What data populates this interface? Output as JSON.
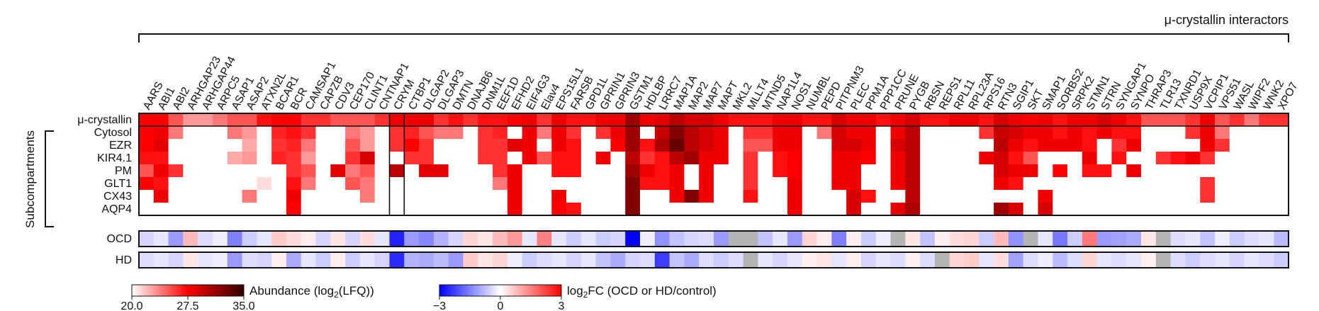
{
  "chart_data": {
    "type": "heatmap",
    "title": "μ-crystallin interactors",
    "columns": [
      "AARS",
      "ABI1",
      "ABI2",
      "ARHGAP23",
      "ARHGAP44",
      "ARPC5",
      "ASAP1",
      "ASAP2",
      "ATXN2L",
      "BCAR1",
      "BCR",
      "CAMSAP1",
      "CAPZB",
      "CDV3",
      "CEP170",
      "CLINT1",
      "CNTNAP1",
      "CRYM",
      "CTBP1",
      "DLGAP2",
      "DLGAP3",
      "DMTN",
      "DNAJB6",
      "DNM1L",
      "EEF1D",
      "EFHD2",
      "EIF4G3",
      "Elav4",
      "EPS15L1",
      "FARSB",
      "GPD1L",
      "GPRIN1",
      "GPRIN3",
      "GSTM1",
      "HDLBP",
      "LRRC7",
      "MAP1A",
      "MAP2",
      "MAP7",
      "MAPT",
      "MKL2",
      "MLLT4",
      "MTND5",
      "NAP1L4",
      "NOS1",
      "NUMBL",
      "PEPD",
      "PITPNM3",
      "PLEC",
      "PPM1A",
      "PPP1CC",
      "PRUNE",
      "PYGB",
      "RBSN",
      "REPS1",
      "RPL11",
      "RPL23A",
      "RPS16",
      "RTN3",
      "SGIP1",
      "SKT",
      "SMAP1",
      "SORBS2",
      "SRPK2",
      "STMN1",
      "STRN",
      "SYNGAP1",
      "SYNPO",
      "THRAP3",
      "TLR13",
      "TXNRD1",
      "USP9X",
      "VCPIP1",
      "VPS51",
      "WASL",
      "WIPF2",
      "WNK2",
      "XPO7"
    ],
    "abundance_rows": [
      "μ-crystallin",
      "Cytosol",
      "EZR",
      "KIR4.1",
      "PM",
      "GLT1",
      "CX43",
      "AQP4"
    ],
    "subcompartments_label": "Subcompartments",
    "fc_rows": [
      "OCD",
      "HD"
    ],
    "highlight_column": "CRYM",
    "abundance_scale": {
      "label_pre": "Abundance (log",
      "label_sub": "2",
      "label_post": "(LFQ))",
      "min": 20.0,
      "max": 35.0,
      "ticks": [
        "20.0",
        "27.5",
        "35.0"
      ],
      "colors": [
        "#ffffff",
        "#ff0000",
        "#300000"
      ]
    },
    "fc_scale": {
      "label_pre": "log",
      "label_sub": "2",
      "label_post": "FC (OCD or HD/control)",
      "min": -3,
      "max": 3,
      "ticks": [
        "−3",
        "0",
        "3"
      ],
      "colors": [
        "#0000ff",
        "#ffffff",
        "#ff0000"
      ]
    },
    "na_color": "#b4b4b4",
    "abundance": [
      [
        27.5,
        27.5,
        25,
        23,
        23,
        24,
        25,
        25,
        27,
        27.5,
        27.5,
        26,
        26,
        25,
        25,
        25,
        26,
        28,
        28,
        28,
        26,
        27,
        26,
        27,
        27,
        27.5,
        28,
        26,
        28,
        27,
        27,
        28,
        28,
        31,
        28,
        28.5,
        30,
        29,
        29,
        28,
        27,
        27,
        27,
        28,
        28,
        27,
        27,
        29,
        28,
        28,
        27,
        28,
        29,
        27,
        27,
        28,
        28,
        27,
        29,
        28,
        27.5,
        28,
        27,
        28,
        28,
        29,
        28,
        27,
        25,
        25,
        25,
        26,
        28,
        25,
        26,
        24,
        26,
        26
      ],
      [
        27.5,
        28,
        24,
        0,
        0,
        0,
        24,
        23,
        0,
        26.5,
        27,
        26,
        0,
        0,
        24,
        23,
        0,
        26,
        26.5,
        25,
        24,
        24,
        0,
        26,
        26.5,
        0,
        28,
        24,
        28,
        26,
        0,
        26,
        28,
        31,
        0,
        29.5,
        32,
        30,
        29,
        28,
        0,
        26,
        26,
        28,
        28,
        0,
        24,
        29,
        28,
        28,
        0,
        28,
        30,
        0,
        0,
        0,
        0,
        26,
        29.5,
        29,
        28,
        28,
        27,
        28,
        27,
        28,
        27,
        27,
        0,
        0,
        0,
        26,
        28,
        24,
        0,
        0,
        0,
        0
      ],
      [
        27.5,
        28.5,
        0,
        0,
        0,
        0,
        0,
        22.5,
        0,
        26,
        26.5,
        24,
        0,
        0,
        25,
        23,
        0,
        26,
        27.5,
        26,
        0,
        0,
        0,
        26,
        26,
        28.5,
        28,
        0,
        28,
        27,
        0,
        0,
        27.5,
        31,
        27,
        30.5,
        33,
        30,
        29,
        28,
        0,
        25,
        25,
        28,
        28,
        0,
        0,
        29,
        29,
        28,
        0,
        29,
        30,
        0,
        0,
        0,
        0,
        0,
        30,
        28,
        27,
        28,
        28,
        28,
        27,
        0,
        26,
        28,
        0,
        0,
        0,
        0,
        28,
        26,
        0,
        0,
        0,
        0
      ],
      [
        27,
        27,
        0,
        0,
        0,
        0,
        22.5,
        23,
        0,
        26.5,
        26,
        23,
        0,
        0,
        26,
        29,
        0,
        0,
        26,
        26,
        0,
        0,
        0,
        26,
        26,
        0,
        28,
        25,
        27,
        27,
        0,
        28,
        0,
        30,
        26,
        27,
        30,
        31,
        28,
        28,
        0,
        26,
        0,
        27,
        27.5,
        0,
        0,
        28,
        28,
        27.5,
        0,
        28,
        30,
        0,
        0,
        0,
        0,
        28,
        29,
        27,
        25,
        0,
        0,
        0,
        28,
        0,
        27,
        0,
        0,
        26,
        27,
        28,
        26,
        0,
        0,
        0,
        0,
        0
      ],
      [
        25,
        28,
        26,
        0,
        0,
        0,
        0,
        0,
        0,
        0,
        26,
        25,
        0,
        28.5,
        24,
        25,
        0,
        30,
        0,
        28.5,
        28.5,
        0,
        0,
        0,
        26,
        28,
        0,
        0,
        27,
        27,
        0,
        0,
        0,
        31,
        28,
        27,
        28,
        0,
        28,
        0,
        0,
        26,
        0,
        27,
        27.5,
        0,
        0,
        28,
        28,
        0,
        0,
        28,
        30,
        0,
        0,
        0,
        0,
        0,
        29,
        28,
        28,
        0,
        27.5,
        0,
        27,
        27,
        0,
        28,
        0,
        0,
        0,
        0,
        0,
        0,
        0,
        0,
        0,
        0
      ],
      [
        27.5,
        27,
        0,
        0,
        0,
        0,
        0,
        0,
        21,
        0,
        27,
        24,
        0,
        0,
        25,
        24,
        0,
        0,
        0,
        0,
        0,
        0,
        0,
        0,
        24,
        28,
        0,
        0,
        0,
        0,
        0,
        0,
        0,
        32,
        27,
        27,
        28,
        0,
        28,
        0,
        0,
        26,
        0,
        0,
        28,
        0,
        0,
        28,
        28,
        0,
        0,
        28,
        30,
        0,
        0,
        0,
        0,
        0,
        28,
        27,
        0,
        0,
        0,
        0,
        0,
        0,
        0,
        0,
        0,
        0,
        0,
        0,
        26,
        0,
        0,
        0,
        0,
        0
      ],
      [
        0,
        28,
        0,
        0,
        0,
        0,
        0,
        24,
        0,
        0,
        28,
        0,
        0,
        0,
        0,
        24,
        0,
        0,
        0,
        0,
        0,
        0,
        0,
        0,
        0,
        28,
        0,
        0,
        28,
        0,
        0,
        0,
        0,
        32,
        0,
        0,
        28,
        32,
        28,
        0,
        0,
        27,
        0,
        0,
        28,
        0,
        0,
        0,
        29,
        27,
        0,
        0,
        30,
        0,
        0,
        0,
        0,
        0,
        0,
        0,
        0,
        28,
        0,
        0,
        0,
        0,
        0,
        0,
        0,
        0,
        0,
        0,
        26,
        0,
        0,
        0,
        0,
        0
      ],
      [
        0,
        0,
        0,
        0,
        0,
        0,
        0,
        0,
        0,
        0,
        27.5,
        0,
        0,
        0,
        0,
        0,
        0,
        0,
        0,
        0,
        0,
        0,
        0,
        0,
        0,
        28,
        0,
        0,
        27.5,
        27,
        0,
        0,
        0,
        32,
        0,
        0,
        0,
        0,
        0,
        0,
        0,
        0,
        0,
        0,
        28,
        0,
        0,
        0,
        29,
        0,
        0,
        28.5,
        30.5,
        0,
        0,
        0,
        0,
        0,
        31,
        29,
        0,
        29,
        0,
        0,
        0,
        0,
        0,
        0,
        0,
        0,
        0,
        0,
        0,
        0,
        0,
        0,
        0,
        0
      ]
    ],
    "fc_values": [
      [
        -0.5,
        -0.3,
        -1.2,
        0.8,
        -0.4,
        -0.2,
        -1.5,
        -0.6,
        -0.3,
        0.6,
        0.4,
        0.2,
        -0.5,
        0.3,
        -0.5,
        0.4,
        -0.3,
        -2.6,
        -1.2,
        -1.4,
        -0.9,
        -0.5,
        0.5,
        0.3,
        0.8,
        1.2,
        -0.3,
        1.5,
        -0.3,
        -0.6,
        -0.3,
        -0.6,
        -0.5,
        -3,
        -0.2,
        -1.3,
        -0.7,
        -0.5,
        -0.4,
        -1.2,
        "na",
        "na",
        -0.7,
        -0.3,
        -1.2,
        0.5,
        0.2,
        -1.5,
        0.2,
        -0.6,
        -0.2,
        "na",
        0.3,
        -0.7,
        0.2,
        0.4,
        0.5,
        -0.6,
        0.8,
        -1.3,
        "na",
        -0.3,
        -1.6,
        -0.6,
        1.6,
        -1.2,
        -1.1,
        -1,
        0.3,
        "na",
        -0.4,
        -0.3,
        -0.7,
        -0.2,
        -0.6,
        -0.4,
        -0.3,
        -0.8
      ],
      [
        -0.4,
        -0.3,
        -0.5,
        0.3,
        -0.3,
        -0.2,
        -1.2,
        -0.4,
        -0.5,
        0.2,
        -1.0,
        -0.3,
        -0.6,
        0.2,
        -0.6,
        -0.3,
        -0.5,
        -2.5,
        -0.9,
        -1.0,
        -0.8,
        -1.2,
        0.6,
        0.3,
        0.5,
        -0.2,
        -0.6,
        -0.4,
        -0.3,
        -0.5,
        -0.3,
        -0.7,
        -1.0,
        -0.5,
        -0.4,
        -2.3,
        -0.7,
        -1.0,
        -0.4,
        -0.6,
        -0.4,
        "na",
        -0.3,
        -0.5,
        -0.3,
        0.2,
        0.3,
        -0.3,
        0.2,
        -0.5,
        -0.3,
        -0.4,
        0.2,
        -0.4,
        "na",
        0.5,
        0.6,
        -0.3,
        0.4,
        -1.1,
        -0.4,
        -0.2,
        -0.8,
        -0.4,
        0.5,
        -0.3,
        -0.4,
        -0.3,
        0.2,
        "na",
        -0.4,
        -0.6,
        -0.4,
        -0.3,
        -0.5,
        -0.3,
        -0.4,
        -0.6
      ]
    ]
  }
}
